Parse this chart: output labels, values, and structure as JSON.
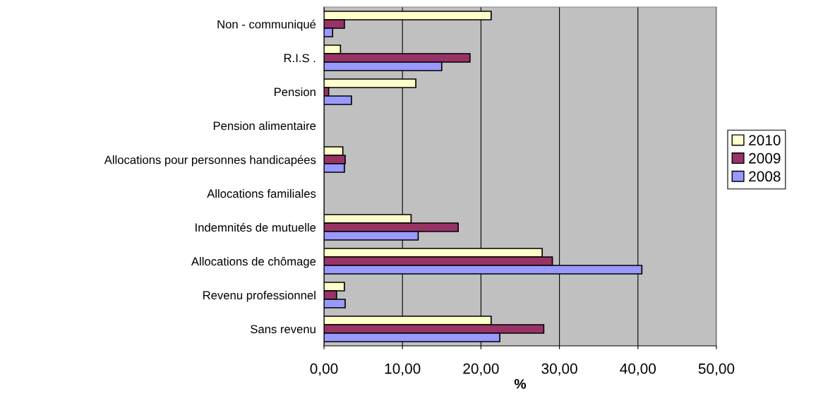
{
  "chart_data": {
    "type": "bar",
    "orientation": "horizontal",
    "xlabel": "%",
    "categories": [
      "Non - communiqué",
      "R.I.S .",
      "Pension",
      "Pension alimentaire",
      "Allocations pour personnes handicapées",
      "Allocations familiales",
      "Indemnités de mutuelle",
      "Allocations de chômage",
      "Revenu professionnel",
      "Sans revenu"
    ],
    "series": [
      {
        "name": "2010",
        "color": "#ffffcc",
        "values": [
          21.3,
          2.1,
          11.7,
          null,
          2.4,
          null,
          11.1,
          27.8,
          2.6,
          21.3
        ]
      },
      {
        "name": "2009",
        "color": "#993366",
        "values": [
          2.6,
          18.6,
          0.6,
          null,
          2.7,
          null,
          17.1,
          29.1,
          1.6,
          28.0
        ]
      },
      {
        "name": "2008",
        "color": "#9999ff",
        "values": [
          1.1,
          15.0,
          3.5,
          null,
          2.6,
          null,
          12.0,
          40.5,
          2.7,
          22.4
        ]
      }
    ],
    "xlim": [
      0,
      50
    ],
    "xticks": [
      {
        "value": 0,
        "label": "0,00"
      },
      {
        "value": 10,
        "label": "10,00"
      },
      {
        "value": 20,
        "label": "20,00"
      },
      {
        "value": 30,
        "label": "30,00"
      },
      {
        "value": 40,
        "label": "40,00"
      },
      {
        "value": 50,
        "label": "50,00"
      }
    ],
    "grid": "x",
    "legend": "right"
  }
}
